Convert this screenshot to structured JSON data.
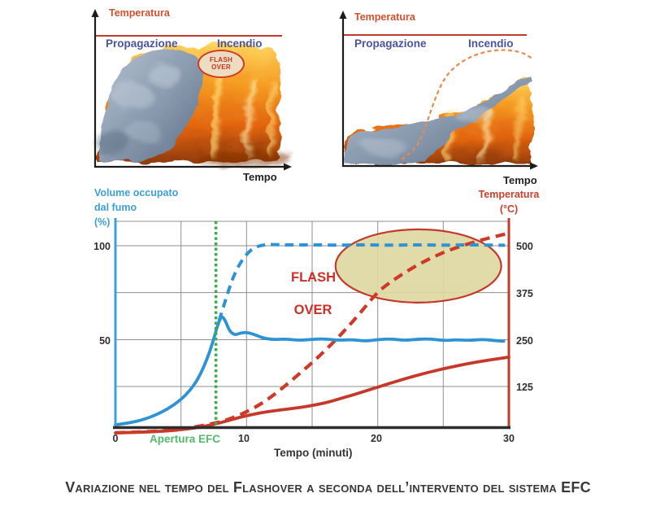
{
  "colors": {
    "smoke_blue": "#2e93d5",
    "smoke_axis_blue": "#3f9fd8",
    "temp_red": "#c5392a",
    "ceiling_red": "#c23b2a",
    "efc_green_line": "#3dab52",
    "efc_green_label": "#55b96b",
    "grid_gray": "#8f8f8f",
    "ellipse_fill": "#ded7a2",
    "phase_label_blue": "#4a53a0",
    "mini_temp_label": "#d0512e"
  },
  "mini_charts": [
    {
      "y_axis_label": "Temperatura",
      "phase_left": "Propagazione",
      "phase_right": "Incendio",
      "x_axis_label": "Tempo",
      "badge": {
        "line1": "FLASH",
        "line2": "OVER"
      }
    },
    {
      "y_axis_label": "Temperatura",
      "phase_left": "Propagazione",
      "phase_right": "Incendio",
      "x_axis_label": "Tempo"
    }
  ],
  "main_chart": {
    "left_axis_label": "Volume occupato\ndal fumo\n(%)",
    "right_axis_label": "Temperatura\n(°C)",
    "x_axis_label": "Tempo (minuti)",
    "event_label": "Apertura EFC",
    "flashover": {
      "line1": "FLASH",
      "line2": "OVER"
    },
    "left_ticks": {
      "t100": "100",
      "t50": "50"
    },
    "right_ticks": {
      "t500": "500",
      "t375": "375",
      "t250": "250",
      "t125": "125"
    },
    "x_ticks": {
      "t0": "0",
      "t10": "10",
      "t20": "20",
      "t30": "30"
    }
  },
  "caption": {
    "text": "Variazione nel tempo del Flashover a seconda dell’intervento del sistema EFC"
  },
  "chart_data": {
    "type": "line",
    "x_axis": {
      "label": "Tempo (minuti)",
      "range": [
        0,
        30
      ],
      "ticks": [
        0,
        10,
        20,
        30
      ],
      "minor_grid_step": 5
    },
    "y_axis_left": {
      "label": "Volume occupato dal fumo (%)",
      "range": [
        0,
        113
      ],
      "ticks": [
        50,
        100
      ]
    },
    "y_axis_right": {
      "label": "Temperatura (°C)",
      "range": [
        0,
        565
      ],
      "ticks": [
        125,
        250,
        375,
        500
      ]
    },
    "grid": true,
    "legend": "none",
    "annotations": {
      "apertura_efc_min": 7.66,
      "flashover_ellipse": {
        "center_min": 23.1,
        "center_temp": 446,
        "radius_min": 6.32,
        "radius_temp": 97.6
      }
    },
    "series": [
      {
        "name": "volume_fumo_con_efc",
        "axis": "percent",
        "style": "solid",
        "color": "#2e93d5",
        "points": [
          [
            0,
            4.5
          ],
          [
            1,
            5.5
          ],
          [
            2,
            7
          ],
          [
            3,
            9.5
          ],
          [
            4,
            13
          ],
          [
            5,
            18
          ],
          [
            5.7,
            23
          ],
          [
            6.3,
            29
          ],
          [
            6.9,
            38
          ],
          [
            7.4,
            48
          ],
          [
            7.8,
            58
          ],
          [
            8.1,
            63
          ],
          [
            8.4,
            60
          ],
          [
            8.7,
            54.5
          ],
          [
            9.1,
            52.5
          ],
          [
            9.5,
            53.5
          ],
          [
            10,
            54
          ],
          [
            10.6,
            52.8
          ],
          [
            11.2,
            51
          ],
          [
            12,
            50
          ],
          [
            13,
            50.4
          ],
          [
            14,
            49.6
          ],
          [
            15,
            50.2
          ],
          [
            16,
            50.5
          ],
          [
            17,
            49.6
          ],
          [
            18,
            50.1
          ],
          [
            19,
            49.2
          ],
          [
            20,
            50
          ],
          [
            21,
            50.5
          ],
          [
            22,
            49.6
          ],
          [
            23,
            50.2
          ],
          [
            24,
            50.5
          ],
          [
            25,
            49.5
          ],
          [
            26,
            50
          ],
          [
            27,
            49.6
          ],
          [
            28,
            50.2
          ],
          [
            29,
            49.5
          ],
          [
            29.6,
            49.2
          ]
        ]
      },
      {
        "name": "volume_fumo_senza_efc",
        "axis": "percent",
        "style": "dashed",
        "color": "#2e93d5",
        "points": [
          [
            7.9,
            60
          ],
          [
            8.3,
            69
          ],
          [
            8.7,
            78
          ],
          [
            9.1,
            85.5
          ],
          [
            9.6,
            92
          ],
          [
            10.1,
            96.5
          ],
          [
            10.6,
            99.3
          ],
          [
            11.2,
            100.6
          ],
          [
            12,
            100.9
          ],
          [
            13,
            100.6
          ],
          [
            15,
            100.7
          ],
          [
            17,
            100.5
          ],
          [
            19,
            100.7
          ],
          [
            21,
            100.5
          ],
          [
            23,
            100.7
          ],
          [
            25,
            100.5
          ],
          [
            27,
            100.7
          ],
          [
            29,
            100.5
          ],
          [
            29.7,
            100.5
          ]
        ]
      },
      {
        "name": "temperatura_con_efc",
        "axis": "temp",
        "style": "solid",
        "color": "#c5392a",
        "points": [
          [
            0,
            1
          ],
          [
            1,
            2
          ],
          [
            2,
            3
          ],
          [
            3,
            4.5
          ],
          [
            4,
            6.5
          ],
          [
            5,
            9.5
          ],
          [
            6,
            14
          ],
          [
            7,
            20
          ],
          [
            8,
            28
          ],
          [
            9,
            38
          ],
          [
            10,
            47
          ],
          [
            11,
            54
          ],
          [
            12,
            59.5
          ],
          [
            13,
            64
          ],
          [
            14,
            68.5
          ],
          [
            15,
            74
          ],
          [
            16,
            81
          ],
          [
            17,
            91
          ],
          [
            18,
            101
          ],
          [
            19,
            112
          ],
          [
            20,
            123
          ],
          [
            21,
            134
          ],
          [
            22,
            144.5
          ],
          [
            23,
            154.5
          ],
          [
            24,
            163.5
          ],
          [
            25,
            172
          ],
          [
            26,
            179.5
          ],
          [
            27,
            186.5
          ],
          [
            28,
            192.5
          ],
          [
            29,
            198
          ],
          [
            30,
            203
          ]
        ]
      },
      {
        "name": "temperatura_senza_efc",
        "axis": "temp",
        "style": "dashed",
        "color": "#cd3a27",
        "points": [
          [
            0,
            1.5
          ],
          [
            2,
            3.5
          ],
          [
            4,
            7
          ],
          [
            6,
            16
          ],
          [
            8,
            30
          ],
          [
            9,
            42
          ],
          [
            10,
            57
          ],
          [
            11,
            76
          ],
          [
            12,
            100
          ],
          [
            13,
            128
          ],
          [
            14,
            158
          ],
          [
            15,
            188
          ],
          [
            16,
            221
          ],
          [
            17,
            256
          ],
          [
            18,
            294
          ],
          [
            19,
            335
          ],
          [
            20,
            377
          ],
          [
            21,
            404
          ],
          [
            22,
            427
          ],
          [
            23,
            448
          ],
          [
            24,
            466
          ],
          [
            25,
            482
          ],
          [
            26,
            495
          ],
          [
            27,
            506
          ],
          [
            28,
            516
          ],
          [
            29,
            525
          ],
          [
            30,
            533
          ]
        ]
      }
    ]
  }
}
